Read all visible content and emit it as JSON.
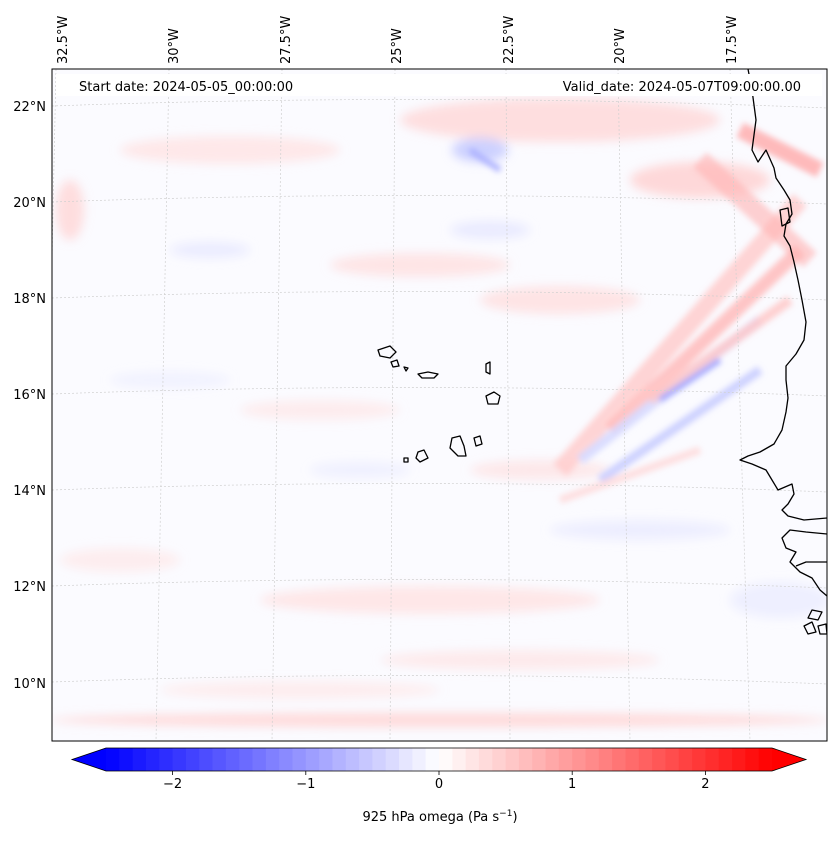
{
  "map": {
    "start_label": "Start date: 2024-05-05_00:00:00",
    "valid_label": "Valid_date: 2024-05-07T09:00:00.00",
    "lon_labels": [
      "32.5°W",
      "30°W",
      "27.5°W",
      "25°W",
      "22.5°W",
      "20°W",
      "17.5°W"
    ],
    "lat_labels": [
      "22°N",
      "20°N",
      "18°N",
      "16°N",
      "14°N",
      "12°N",
      "10°N"
    ],
    "field": "925 hPa omega",
    "islands": [
      "Santo Antão",
      "São Vicente",
      "Santa Luzia",
      "São Nicolau",
      "Sal",
      "Boa Vista",
      "Maio",
      "Santiago",
      "Fogo",
      "Brava"
    ]
  },
  "colorbar": {
    "ticks": [
      "−2",
      "−1",
      "0",
      "1",
      "2"
    ],
    "tick_values": [
      -2,
      -1,
      0,
      1,
      2
    ],
    "range": [
      -2.5,
      2.5
    ],
    "label_main": "925 hPa omega (Pa s",
    "label_exp": "−1",
    "label_end": ")",
    "color_min": "#0000ff",
    "color_mid": "#ffffff",
    "color_max": "#ff0000"
  }
}
